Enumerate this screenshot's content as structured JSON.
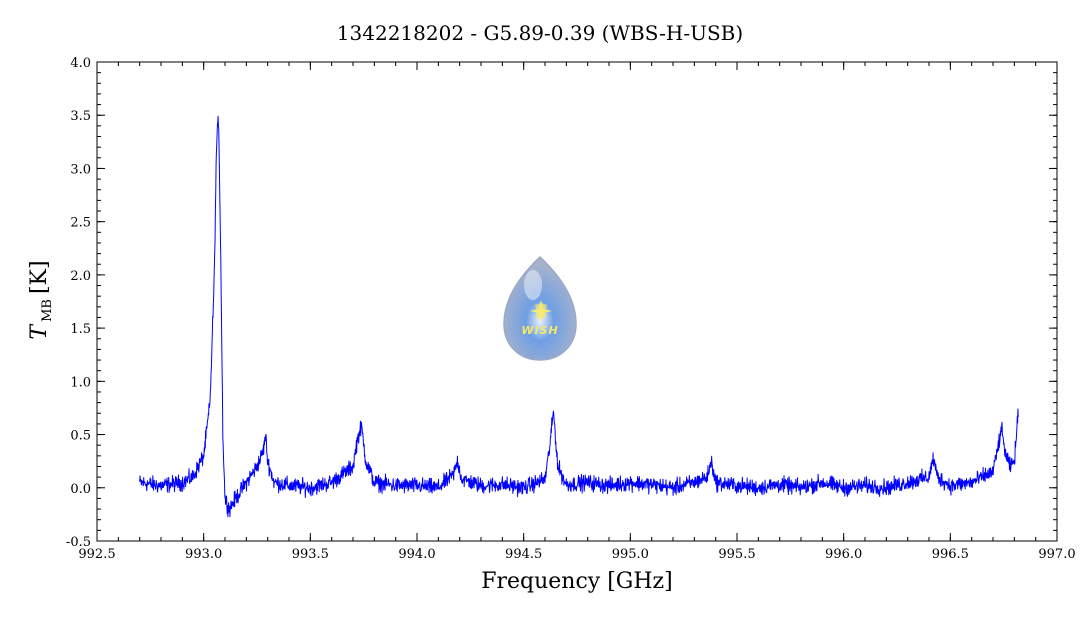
{
  "chart_data": {
    "type": "line",
    "title": "1342218202 - G5.89-0.39 (WBS-H-USB)",
    "xlabel": "Frequency [GHz]",
    "ylabel_main": "T",
    "ylabel_sub": "MB",
    "ylabel_unit": "[K]",
    "xlim": [
      992.5,
      997.0
    ],
    "ylim": [
      -0.5,
      4.0
    ],
    "x_ticks": [
      "992.5",
      "993.0",
      "993.5",
      "994.0",
      "994.5",
      "995.0",
      "995.5",
      "996.0",
      "996.5",
      "997.0"
    ],
    "y_ticks": [
      "-0.5",
      "0.0",
      "0.5",
      "1.0",
      "1.5",
      "2.0",
      "2.5",
      "3.0",
      "3.5",
      "4.0"
    ],
    "grid": false,
    "series": [
      {
        "color": "#0000ff",
        "x": [
          992.7,
          992.8,
          992.9,
          992.95,
          993.0,
          993.03,
          993.05,
          993.06,
          993.07,
          993.08,
          993.09,
          993.1,
          993.12,
          993.15,
          993.2,
          993.25,
          993.28,
          993.29,
          993.3,
          993.33,
          993.4,
          993.5,
          993.6,
          993.7,
          993.72,
          993.74,
          993.76,
          993.8,
          993.9,
          994.0,
          994.1,
          994.17,
          994.19,
          994.21,
          994.3,
          994.4,
          994.5,
          994.6,
          994.62,
          994.64,
          994.66,
          994.7,
          994.8,
          994.9,
          995.0,
          995.1,
          995.2,
          995.3,
          995.36,
          995.38,
          995.4,
          995.5,
          995.6,
          995.7,
          995.8,
          995.9,
          996.0,
          996.1,
          996.2,
          996.3,
          996.4,
          996.42,
          996.44,
          996.5,
          996.6,
          996.7,
          996.72,
          996.74,
          996.76,
          996.78,
          996.8,
          996.82
        ],
        "y": [
          0.05,
          0.02,
          0.05,
          0.1,
          0.3,
          0.8,
          2.0,
          3.2,
          3.5,
          2.2,
          0.5,
          -0.1,
          -0.2,
          -0.1,
          0.05,
          0.2,
          0.35,
          0.5,
          0.25,
          0.05,
          0.02,
          0.0,
          0.05,
          0.2,
          0.45,
          0.58,
          0.25,
          0.05,
          0.02,
          0.02,
          0.0,
          0.12,
          0.25,
          0.08,
          0.02,
          0.03,
          0.0,
          0.08,
          0.35,
          0.72,
          0.2,
          0.03,
          0.05,
          0.02,
          0.05,
          0.03,
          0.0,
          0.05,
          0.1,
          0.25,
          0.05,
          0.02,
          0.0,
          0.03,
          0.0,
          0.05,
          0.0,
          0.02,
          0.0,
          0.05,
          0.1,
          0.28,
          0.1,
          0.02,
          0.05,
          0.15,
          0.35,
          0.55,
          0.3,
          0.2,
          0.25,
          0.75
        ]
      }
    ]
  },
  "watermark": {
    "text": "WISH"
  }
}
